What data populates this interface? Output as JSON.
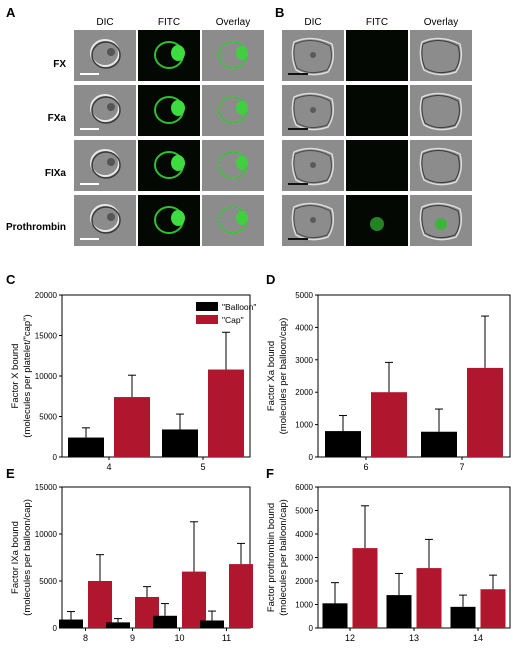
{
  "panels": {
    "A": {
      "label": "A",
      "columns": [
        "DIC",
        "FITC",
        "Overlay"
      ],
      "rows": [
        "FX",
        "FXa",
        "FIXa",
        "Prothrombin"
      ]
    },
    "B": {
      "label": "B",
      "columns": [
        "DIC",
        "FITC",
        "Overlay"
      ]
    }
  },
  "chart_data": [
    {
      "panel": "C",
      "type": "bar",
      "categories": [
        "4",
        "5"
      ],
      "series": [
        {
          "name": "\"Balloon\"",
          "values": [
            2400,
            3400
          ],
          "errors": [
            1200,
            1900
          ]
        },
        {
          "name": "\"Cap\"",
          "values": [
            7400,
            10800
          ],
          "errors": [
            2700,
            4600
          ]
        }
      ],
      "ylabel": [
        "Factor X bound",
        "(molecules per platelet/\"cap\")"
      ],
      "ylim": [
        0,
        20000
      ],
      "yticks": [
        0,
        5000,
        10000,
        15000,
        20000
      ],
      "legend": "top-center",
      "colors": {
        "balloon": "#000000",
        "cap": "#b0172f"
      }
    },
    {
      "panel": "D",
      "type": "bar",
      "categories": [
        "6",
        "7"
      ],
      "series": [
        {
          "name": "\"Balloon\"",
          "values": [
            800,
            780
          ],
          "errors": [
            480,
            700
          ]
        },
        {
          "name": "\"Cap\"",
          "values": [
            2000,
            2750
          ],
          "errors": [
            920,
            1600
          ]
        }
      ],
      "ylabel": [
        "Factor Xa bound",
        "(molecules per balloon/cap)"
      ],
      "ylim": [
        0,
        5000
      ],
      "yticks": [
        0,
        1000,
        2000,
        3000,
        4000,
        5000
      ]
    },
    {
      "panel": "E",
      "type": "bar",
      "categories": [
        "8",
        "9",
        "10",
        "11"
      ],
      "series": [
        {
          "name": "\"Balloon\"",
          "values": [
            900,
            600,
            1300,
            800
          ],
          "errors": [
            850,
            400,
            1300,
            1000
          ]
        },
        {
          "name": "\"Cap\"",
          "values": [
            5000,
            3300,
            6000,
            6800
          ],
          "errors": [
            2800,
            1100,
            5300,
            2200
          ]
        }
      ],
      "ylabel": [
        "Factor IXa bound",
        "(molecules per balloon/cap)"
      ],
      "ylim": [
        0,
        15000
      ],
      "yticks": [
        0,
        5000,
        10000,
        15000
      ]
    },
    {
      "panel": "F",
      "type": "bar",
      "categories": [
        "12",
        "13",
        "14"
      ],
      "series": [
        {
          "name": "\"Balloon\"",
          "values": [
            1050,
            1400,
            900
          ],
          "errors": [
            880,
            920,
            500
          ]
        },
        {
          "name": "\"Cap\"",
          "values": [
            3400,
            2550,
            1650
          ],
          "errors": [
            1800,
            1220,
            600
          ]
        }
      ],
      "ylabel": [
        "Factor prothrombin bound",
        "(molecules per balloon/cap)"
      ],
      "ylim": [
        0,
        6000
      ],
      "yticks": [
        0,
        1000,
        2000,
        3000,
        4000,
        5000,
        6000
      ]
    }
  ]
}
